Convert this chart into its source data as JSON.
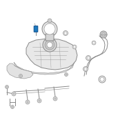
{
  "bg_color": "#ffffff",
  "border_color": "#cccccc",
  "line_color": "#888888",
  "line_dark": "#555555",
  "highlight_color": "#1e7bbf",
  "figsize": [
    2.0,
    2.0
  ],
  "dpi": 100,
  "tank_fc": "#e8e8e8",
  "tank_ec": "#777777"
}
